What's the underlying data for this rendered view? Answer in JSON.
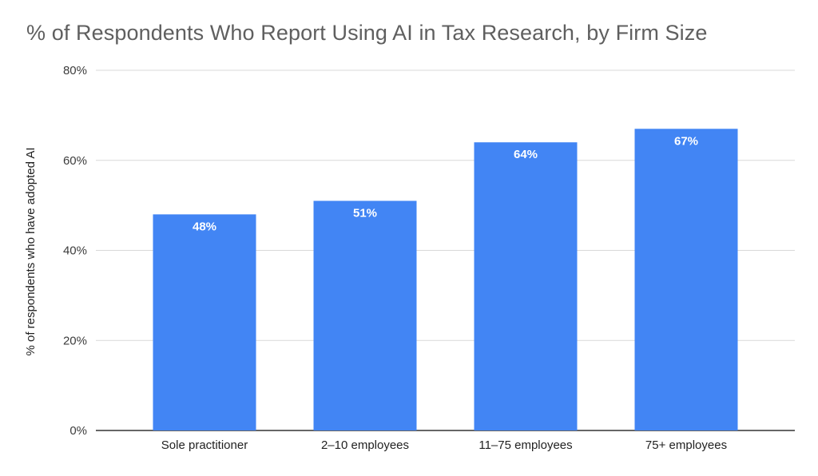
{
  "chart_data": {
    "type": "bar",
    "title": "% of Respondents Who Report Using AI in Tax Research, by Firm Size",
    "xlabel": "",
    "ylabel": "% of respondents who have adopted AI",
    "categories": [
      "Sole practitioner",
      "2–10 employees",
      "11–75 employees",
      "75+ employees"
    ],
    "values": [
      48,
      51,
      64,
      67
    ],
    "data_labels": [
      "48%",
      "51%",
      "64%",
      "67%"
    ],
    "ylim": [
      0,
      80
    ],
    "yticks": [
      0,
      20,
      40,
      60,
      80
    ],
    "ytick_labels": [
      "0%",
      "20%",
      "40%",
      "60%",
      "80%"
    ],
    "grid": true,
    "legend": "none",
    "bar_color": "#4285f4",
    "grid_color": "#d9d9d9"
  }
}
